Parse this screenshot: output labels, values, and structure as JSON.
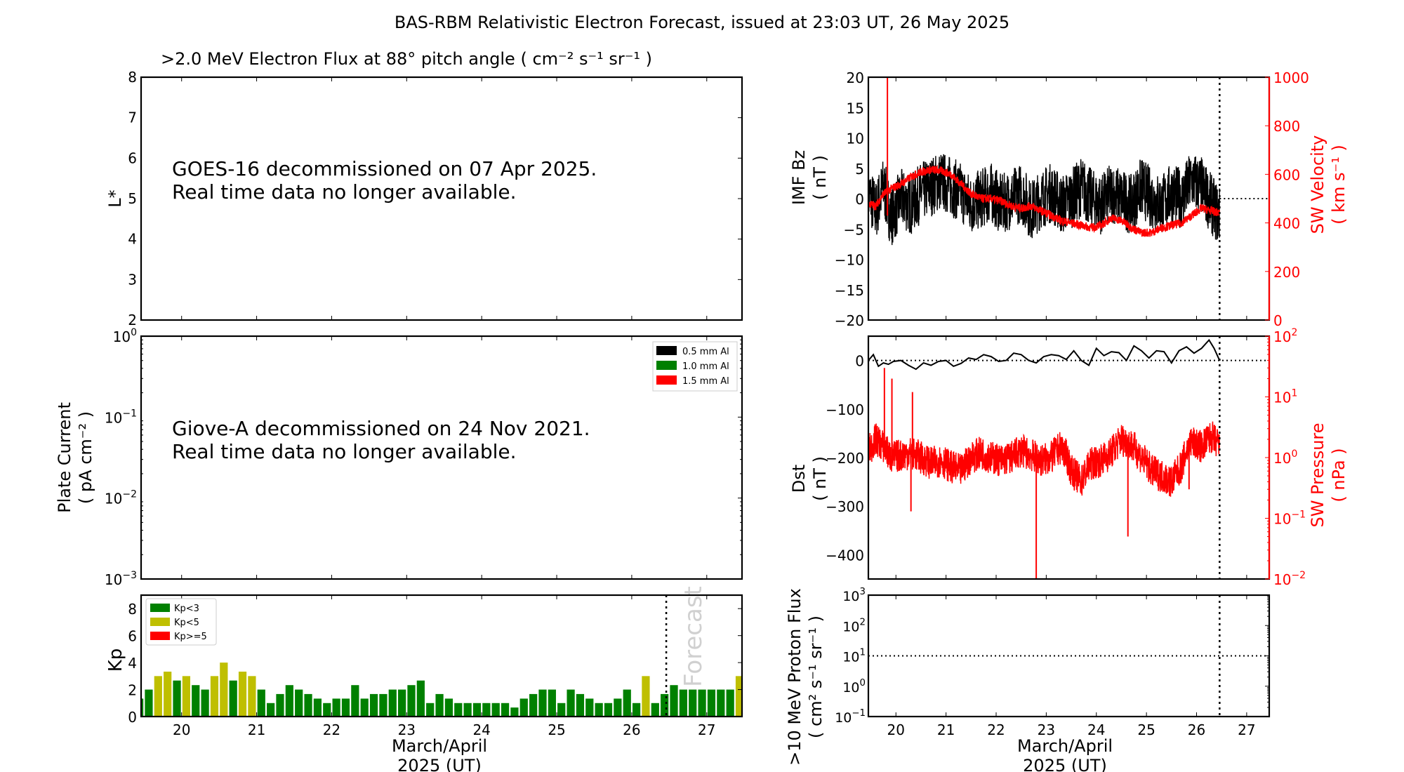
{
  "figure": {
    "title": "BAS-RBM Relativistic Electron Forecast, issued at 23:03 UT, 26 May 2025",
    "forecast_start_day": 26.46
  },
  "chart_data": [
    {
      "id": "electron-flux",
      "type": "heatmap",
      "title": ">2.0 MeV Electron Flux at 88° pitch angle ( cm⁻² s⁻¹ sr⁻¹ )",
      "ylabel": "L*",
      "ylim": [
        2,
        8
      ],
      "yticks": [
        "2",
        "3",
        "4",
        "5",
        "6",
        "7",
        "8"
      ],
      "xlim": [
        19.46,
        27.47
      ],
      "message": [
        "GOES-16 decommissioned on 07 Apr 2025.",
        "Real time data no longer available."
      ]
    },
    {
      "id": "plate-current",
      "type": "line",
      "ylabel": "Plate Current",
      "ylabel2": "( pA cm⁻² )",
      "yscale": "log",
      "ylim": [
        0.001,
        1
      ],
      "yticks": [
        {
          "base": "10",
          "exp": "0"
        },
        {
          "base": "10",
          "exp": "−1"
        },
        {
          "base": "10",
          "exp": "−2"
        },
        {
          "base": "10",
          "exp": "−3"
        }
      ],
      "xlim": [
        19.46,
        27.47
      ],
      "legend": {
        "placement": "top-right",
        "entries": [
          {
            "label": "0.5 mm Al",
            "color": "#000000"
          },
          {
            "label": "1.0 mm Al",
            "color": "#008000"
          },
          {
            "label": "1.5 mm Al",
            "color": "#ff0000"
          }
        ]
      },
      "message": [
        "Giove-A decommissioned on 24 Nov 2021.",
        "Real time data no longer available."
      ]
    },
    {
      "id": "kp",
      "type": "bar",
      "ylabel": "Kp",
      "ylim": [
        0,
        9
      ],
      "yticks": [
        "0",
        "2",
        "4",
        "6",
        "8"
      ],
      "xlim": [
        19.46,
        27.47
      ],
      "xticks": [
        "20",
        "21",
        "22",
        "23",
        "24",
        "25",
        "26",
        "27"
      ],
      "xlabel": [
        "March/April",
        "2025 (UT)"
      ],
      "bar_start_day": 19.375,
      "bar_step_days": 0.125,
      "values": [
        1.33,
        2,
        3,
        3.33,
        2.67,
        3,
        2.33,
        2,
        3,
        4,
        2.67,
        3.33,
        3,
        2,
        1,
        1.67,
        2.33,
        2,
        1.67,
        1.33,
        1,
        1.33,
        1.33,
        2.33,
        1.33,
        1.67,
        1.67,
        2,
        2,
        2.33,
        2.67,
        1,
        1.67,
        1.33,
        1,
        1,
        1,
        1,
        1,
        1,
        0.67,
        1.33,
        1.67,
        2,
        2,
        1,
        2,
        1.67,
        1.33,
        1,
        1,
        1.33,
        2,
        1,
        3,
        1,
        1.67,
        2.33,
        2,
        2,
        2,
        2,
        2,
        2,
        3,
        3
      ],
      "forecast_label": "Forecast",
      "legend": {
        "placement": "top-left",
        "entries": [
          {
            "label": "Kp<3",
            "color": "#008000"
          },
          {
            "label": "Kp<5",
            "color": "#bfbf00"
          },
          {
            "label": "Kp>=5",
            "color": "#ff0000"
          }
        ]
      }
    },
    {
      "id": "imf-sw",
      "type": "line",
      "ylabel": "IMF Bz",
      "ylabel_unit": "( nT )",
      "ylim": [
        -20,
        20
      ],
      "yticks": [
        "−20",
        "−15",
        "−10",
        "−5",
        "0",
        "5",
        "10",
        "15",
        "20"
      ],
      "y2label": "SW Velocity",
      "y2label_unit": "( km s⁻¹ )",
      "y2lim": [
        0,
        1000
      ],
      "y2ticks": [
        "0",
        "200",
        "400",
        "600",
        "800",
        "1000"
      ],
      "xlim": [
        19.45,
        27.45
      ],
      "series": [
        {
          "name": "IMF Bz",
          "color": "#000000",
          "x": [
            19.45,
            19.6,
            19.75,
            19.9,
            20.1,
            20.3,
            20.5,
            20.7,
            20.9,
            21.1,
            21.3,
            21.5,
            21.7,
            21.9,
            22.1,
            22.3,
            22.5,
            22.7,
            22.9,
            23.1,
            23.3,
            23.5,
            23.7,
            23.9,
            24.1,
            24.3,
            24.5,
            24.7,
            24.9,
            25.1,
            25.3,
            25.5,
            25.7,
            25.9,
            26.1,
            26.3,
            26.46
          ],
          "y": [
            1,
            -2,
            2,
            -3,
            0,
            -1,
            1,
            2,
            3,
            2,
            1,
            -1,
            0,
            1,
            -1,
            0,
            1,
            -2,
            0,
            1,
            -1,
            0,
            2,
            0,
            -1,
            1,
            0,
            -1,
            2,
            0,
            -1,
            1,
            0,
            3,
            2,
            -1,
            -3
          ],
          "band": 5
        },
        {
          "name": "SW Velocity",
          "color": "#ff0000",
          "axis": "right",
          "x": [
            19.45,
            19.6,
            19.75,
            19.9,
            20.1,
            20.3,
            20.5,
            20.7,
            20.9,
            21.1,
            21.3,
            21.5,
            21.7,
            21.9,
            22.1,
            22.3,
            22.5,
            22.7,
            22.9,
            23.1,
            23.3,
            23.5,
            23.7,
            23.9,
            24.1,
            24.3,
            24.5,
            24.7,
            24.9,
            25.1,
            25.3,
            25.5,
            25.7,
            25.9,
            26.1,
            26.3,
            26.46
          ],
          "y": [
            480,
            470,
            520,
            540,
            560,
            590,
            610,
            620,
            615,
            600,
            560,
            520,
            500,
            500,
            490,
            470,
            460,
            470,
            450,
            430,
            410,
            400,
            390,
            380,
            390,
            420,
            410,
            380,
            360,
            360,
            380,
            390,
            400,
            430,
            460,
            450,
            440
          ],
          "spike": {
            "x": 19.83,
            "y": 1000
          }
        }
      ],
      "reference_line": {
        "y": 0,
        "from_day": 26.46
      }
    },
    {
      "id": "dst-pressure",
      "type": "line",
      "ylabel": "Dst",
      "ylabel_unit": "( nT )",
      "ylim": [
        -450,
        50
      ],
      "yticks": [
        "−400",
        "−300",
        "−200",
        "−100",
        "0"
      ],
      "y2label": "SW Pressure",
      "y2label_unit": "( nPa )",
      "y2scale": "log",
      "y2lim": [
        0.01,
        100
      ],
      "y2ticks": [
        {
          "base": "10",
          "exp": "−2"
        },
        {
          "base": "10",
          "exp": "−1"
        },
        {
          "base": "10",
          "exp": "0"
        },
        {
          "base": "10",
          "exp": "1"
        },
        {
          "base": "10",
          "exp": "2"
        }
      ],
      "xlim": [
        19.45,
        27.45
      ],
      "series": [
        {
          "name": "Dst",
          "color": "#000000",
          "x": [
            19.45,
            19.55,
            19.65,
            19.75,
            19.85,
            19.95,
            20.1,
            20.25,
            20.4,
            20.55,
            20.7,
            20.85,
            21.0,
            21.15,
            21.3,
            21.45,
            21.6,
            21.75,
            21.9,
            22.05,
            22.2,
            22.35,
            22.5,
            22.65,
            22.8,
            22.95,
            23.1,
            23.25,
            23.4,
            23.55,
            23.7,
            23.85,
            24.0,
            24.15,
            24.3,
            24.45,
            24.6,
            24.75,
            24.9,
            25.05,
            25.2,
            25.35,
            25.5,
            25.65,
            25.8,
            25.95,
            26.1,
            26.25,
            26.35,
            26.46
          ],
          "y": [
            0,
            12,
            -12,
            -5,
            -8,
            -2,
            0,
            -10,
            -18,
            -5,
            -10,
            -2,
            0,
            -12,
            -6,
            5,
            2,
            12,
            8,
            -2,
            0,
            15,
            12,
            0,
            -5,
            8,
            12,
            10,
            2,
            20,
            0,
            -10,
            25,
            10,
            18,
            16,
            0,
            30,
            20,
            5,
            20,
            18,
            -5,
            20,
            28,
            15,
            25,
            42,
            25,
            0
          ]
        },
        {
          "name": "SW Pressure",
          "color": "#ff0000",
          "axis": "right",
          "x": [
            19.45,
            19.6,
            19.75,
            19.9,
            20.1,
            20.3,
            20.5,
            20.7,
            20.9,
            21.1,
            21.3,
            21.5,
            21.7,
            21.9,
            22.1,
            22.3,
            22.5,
            22.7,
            22.9,
            23.1,
            23.3,
            23.5,
            23.7,
            23.9,
            24.1,
            24.3,
            24.5,
            24.7,
            24.9,
            25.1,
            25.3,
            25.5,
            25.7,
            25.9,
            26.1,
            26.3,
            26.46
          ],
          "y": [
            1.2,
            2.0,
            1.5,
            1.0,
            1.1,
            1.2,
            1.0,
            0.8,
            0.9,
            0.7,
            0.6,
            1.0,
            1.2,
            1.0,
            0.9,
            1.0,
            1.3,
            1.1,
            0.9,
            1.0,
            1.5,
            0.6,
            0.4,
            0.8,
            0.9,
            1.2,
            2.0,
            1.6,
            1.0,
            0.6,
            0.5,
            0.4,
            0.7,
            1.8,
            1.5,
            2.2,
            1.5
          ],
          "spikes": [
            {
              "x": 19.77,
              "y": 30
            },
            {
              "x": 19.92,
              "y": 20
            },
            {
              "x": 20.33,
              "y": 12
            },
            {
              "x": 20.3,
              "y": 0.13
            },
            {
              "x": 22.8,
              "y": 0.01
            },
            {
              "x": 24.63,
              "y": 0.05
            },
            {
              "x": 25.85,
              "y": 0.3
            }
          ]
        }
      ],
      "reference_line": {
        "y": 0
      }
    },
    {
      "id": "proton-flux",
      "type": "line",
      "ylabel": ">10 MeV Proton Flux",
      "ylabel_unit": "( cm² s⁻¹ sr⁻¹ )",
      "yscale": "log",
      "ylim": [
        0.1,
        1000
      ],
      "yticks": [
        {
          "base": "10",
          "exp": "−1"
        },
        {
          "base": "10",
          "exp": "0"
        },
        {
          "base": "10",
          "exp": "1"
        },
        {
          "base": "10",
          "exp": "2"
        },
        {
          "base": "10",
          "exp": "3"
        }
      ],
      "xlim": [
        19.45,
        27.45
      ],
      "xticks": [
        "20",
        "21",
        "22",
        "23",
        "24",
        "25",
        "26",
        "27"
      ],
      "xlabel": [
        "March/April",
        "2025 (UT)"
      ],
      "reference_line": {
        "y": 10
      }
    }
  ]
}
